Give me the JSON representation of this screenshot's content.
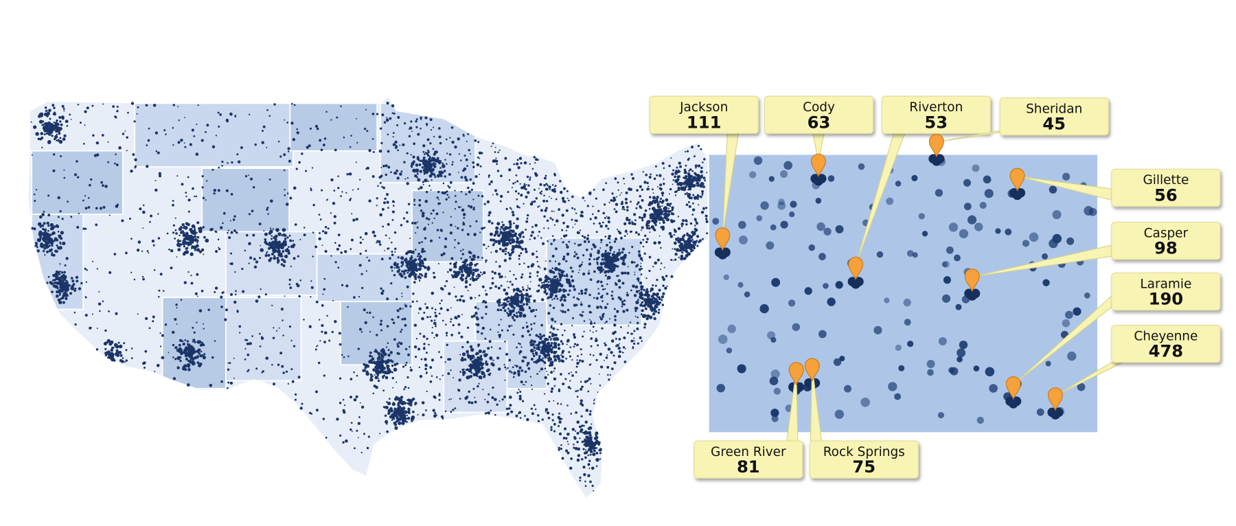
{
  "callouts": [
    {
      "label": "Jackson",
      "value": 111
    },
    {
      "label": "Cody",
      "value": 63
    },
    {
      "label": "Riverton",
      "value": 53
    },
    {
      "label": "Sheridan",
      "value": 45
    },
    {
      "label": "Gillette",
      "value": 56
    },
    {
      "label": "Casper",
      "value": 98
    },
    {
      "label": "Laramie",
      "value": 190
    },
    {
      "label": "Cheyenne",
      "value": 478
    },
    {
      "label": "Green River",
      "value": 81
    },
    {
      "label": "Rock Springs",
      "value": 75
    }
  ]
}
